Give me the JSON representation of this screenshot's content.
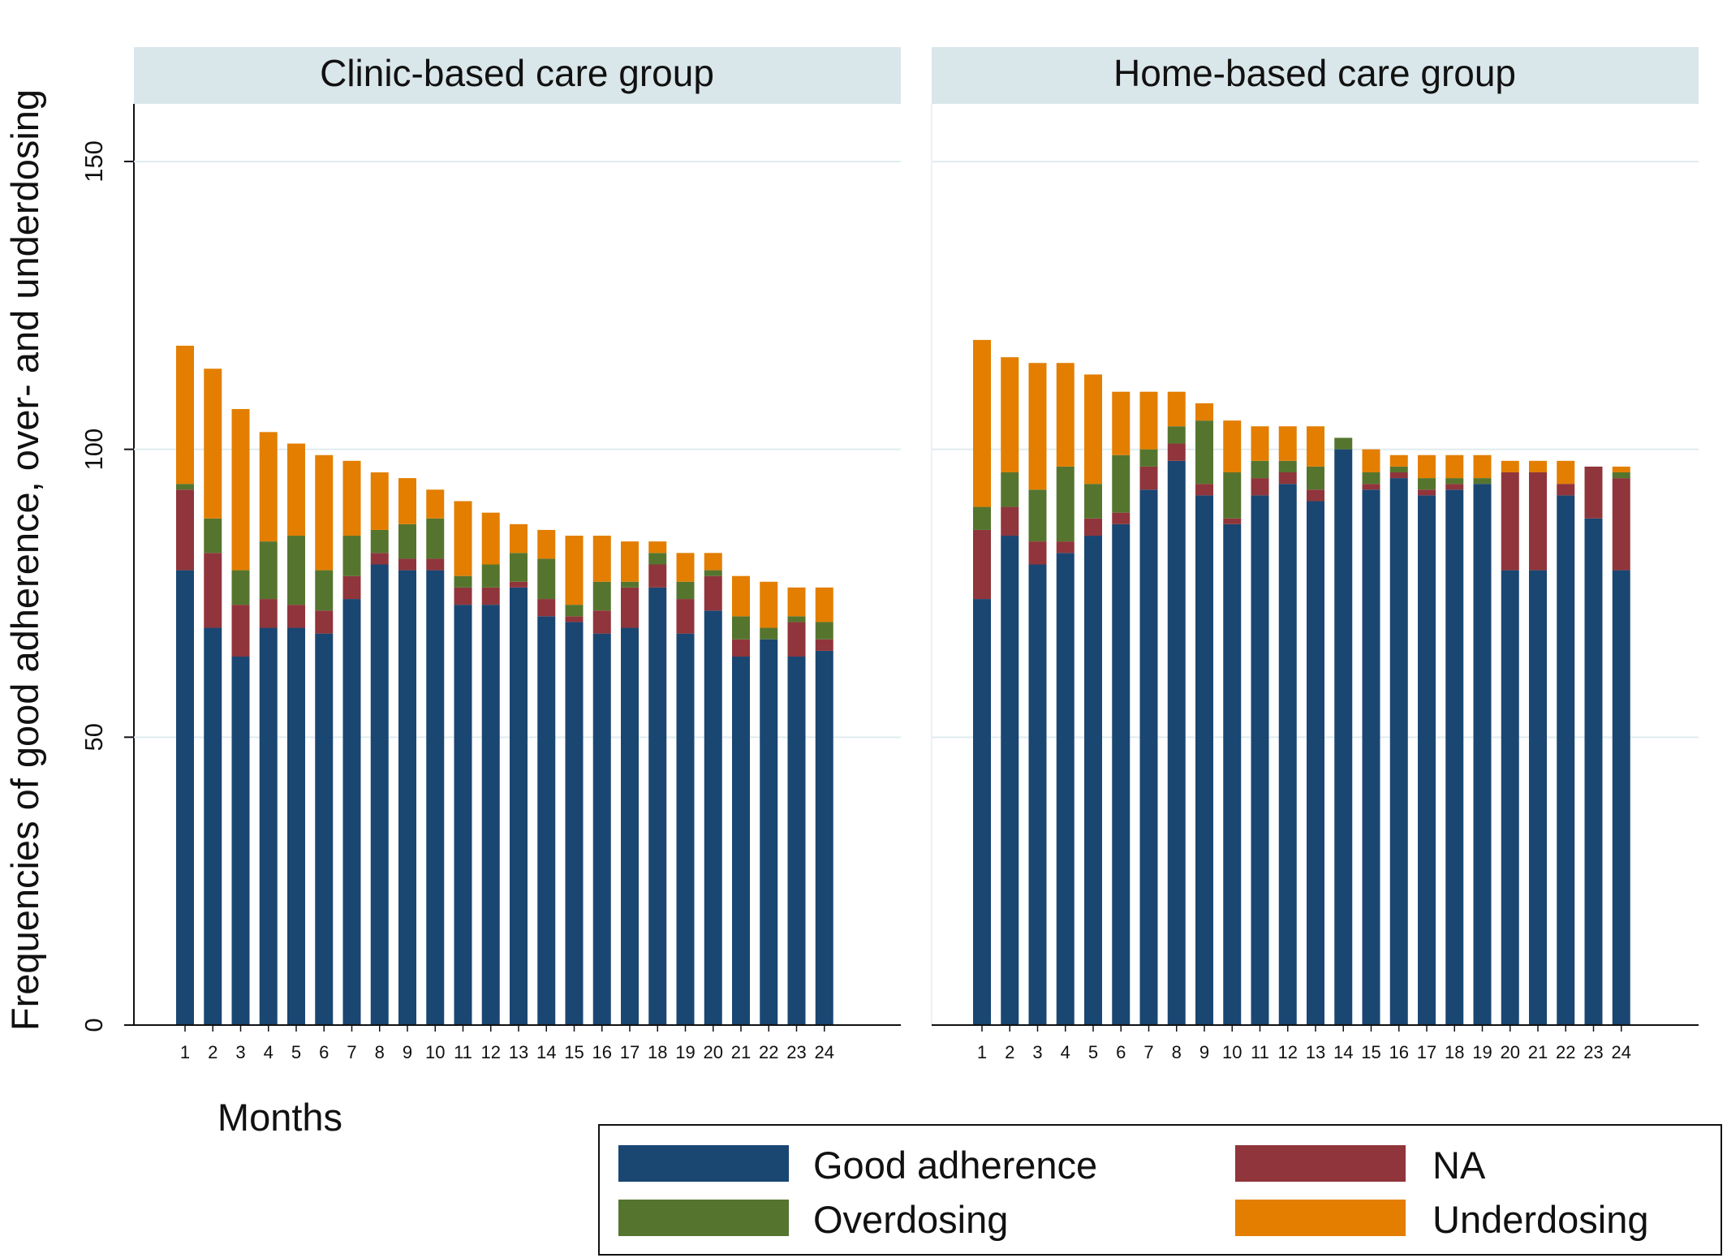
{
  "chart_data": {
    "type": "bar",
    "stacked": true,
    "ylabel": "Frequencies of good adherence, over- and underdosing",
    "xlabel": "Months",
    "ylim": [
      0,
      160
    ],
    "yticks": [
      0,
      50,
      100,
      150
    ],
    "grid": true,
    "categories": [
      "1",
      "2",
      "3",
      "4",
      "5",
      "6",
      "7",
      "8",
      "9",
      "10",
      "11",
      "12",
      "13",
      "14",
      "15",
      "16",
      "17",
      "18",
      "19",
      "20",
      "21",
      "22",
      "23",
      "24"
    ],
    "colors": {
      "Good adherence": "#1a4672",
      "NA": "#90353b",
      "Overdosing": "#55752f",
      "Underdosing": "#e37e00"
    },
    "legend": {
      "placement": "bottom-right",
      "entries": [
        "Good adherence",
        "NA",
        "Overdosing",
        "Underdosing"
      ]
    },
    "panels": [
      {
        "title": "Clinic-based care group",
        "series": [
          {
            "name": "Good adherence",
            "values": [
              79,
              69,
              64,
              69,
              69,
              68,
              74,
              80,
              79,
              79,
              73,
              73,
              76,
              71,
              70,
              68,
              69,
              76,
              68,
              72,
              64,
              67,
              64,
              65
            ]
          },
          {
            "name": "NA",
            "values": [
              14,
              13,
              9,
              5,
              4,
              4,
              4,
              2,
              2,
              2,
              3,
              3,
              1,
              3,
              1,
              4,
              7,
              4,
              6,
              6,
              3,
              0,
              6,
              2
            ]
          },
          {
            "name": "Overdosing",
            "values": [
              1,
              6,
              6,
              10,
              12,
              7,
              7,
              4,
              6,
              7,
              2,
              4,
              5,
              7,
              2,
              5,
              1,
              2,
              3,
              1,
              4,
              2,
              1,
              3
            ]
          },
          {
            "name": "Underdosing",
            "values": [
              24,
              26,
              28,
              19,
              16,
              20,
              13,
              10,
              8,
              5,
              13,
              9,
              5,
              5,
              12,
              8,
              7,
              2,
              5,
              3,
              7,
              8,
              5,
              6
            ]
          }
        ]
      },
      {
        "title": "Home-based care group",
        "series": [
          {
            "name": "Good adherence",
            "values": [
              74,
              85,
              80,
              82,
              85,
              87,
              93,
              98,
              92,
              87,
              92,
              94,
              91,
              100,
              93,
              95,
              92,
              93,
              94,
              79,
              79,
              92,
              88,
              79
            ]
          },
          {
            "name": "NA",
            "values": [
              12,
              5,
              4,
              2,
              3,
              2,
              4,
              3,
              2,
              1,
              3,
              2,
              2,
              0,
              1,
              1,
              1,
              1,
              0,
              17,
              17,
              2,
              9,
              16
            ]
          },
          {
            "name": "Overdosing",
            "values": [
              4,
              6,
              9,
              13,
              6,
              10,
              3,
              3,
              11,
              8,
              3,
              2,
              4,
              2,
              2,
              1,
              2,
              1,
              1,
              0,
              0,
              0,
              0,
              1
            ]
          },
          {
            "name": "Underdosing",
            "values": [
              29,
              20,
              22,
              18,
              19,
              11,
              10,
              6,
              3,
              9,
              6,
              6,
              7,
              0,
              4,
              2,
              4,
              4,
              4,
              2,
              2,
              4,
              0,
              1
            ]
          }
        ]
      }
    ]
  }
}
